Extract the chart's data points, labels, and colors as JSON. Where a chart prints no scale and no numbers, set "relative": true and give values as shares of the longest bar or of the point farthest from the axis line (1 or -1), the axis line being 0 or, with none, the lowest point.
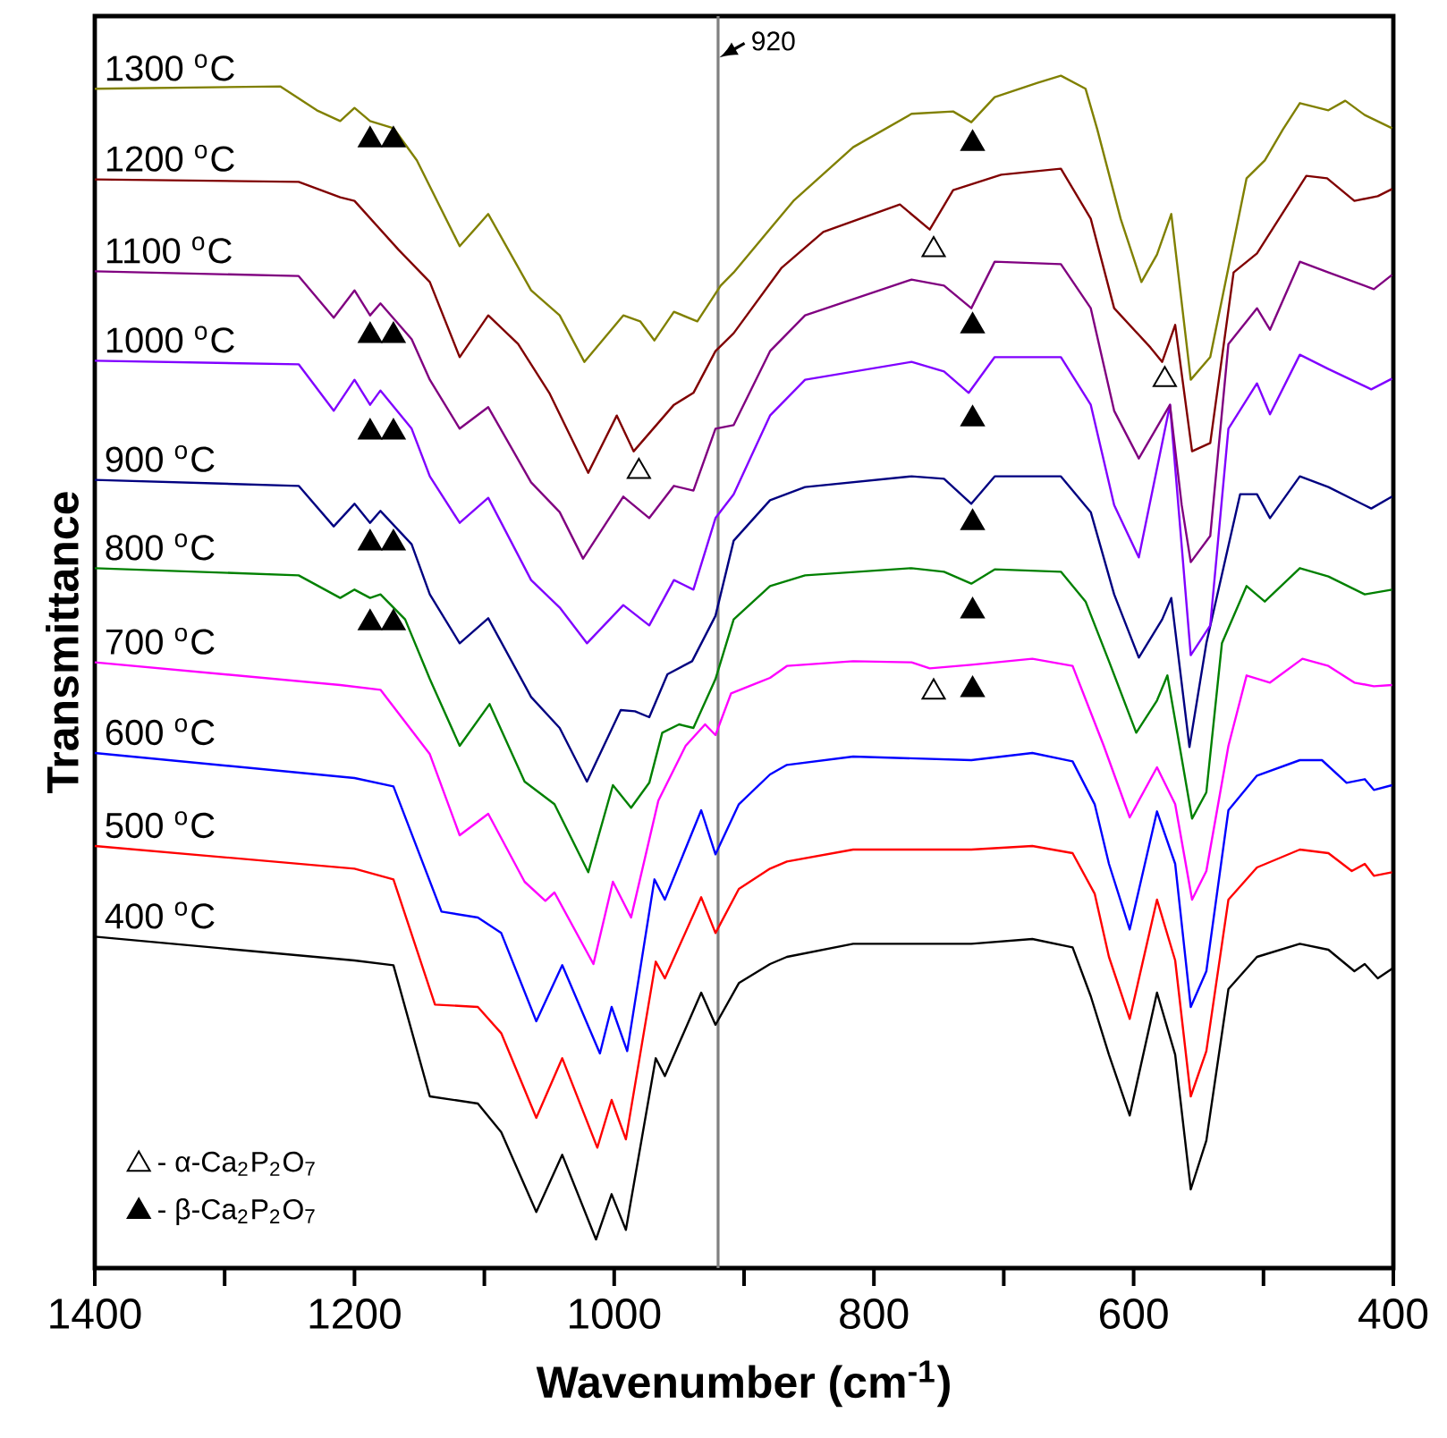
{
  "chart_data": {
    "type": "line",
    "relative": true,
    "xlabel": "Wavenumber (cm$^{-1}$)",
    "ylabel": "Transmittance",
    "xlim": [
      1400,
      400
    ],
    "xticks": [
      1400,
      {
        "value": 1300,
        "label": null
      },
      1200,
      {
        "value": 1100,
        "label": null
      },
      1000,
      {
        "value": 900,
        "label": null
      },
      800,
      {
        "value": 700,
        "label": null
      },
      600,
      {
        "value": 500,
        "label": null
      },
      400
    ],
    "tick_labels": "x",
    "legend": "bottom left",
    "ref_lines": [
      {
        "axis": "x",
        "value": 920,
        "label": "920",
        "color": "#808080"
      }
    ],
    "series": [
      {
        "name": "400 $^{o}$C",
        "color": "#000000",
        "x": [
          1400,
          1200,
          1170,
          1142,
          1105,
          1087,
          1060,
          1040,
          1014,
          1002,
          991,
          968,
          961,
          933,
          922,
          904,
          880,
          867,
          816,
          725,
          678,
          647,
          633,
          619,
          603,
          582,
          568,
          556,
          544,
          527,
          505,
          472,
          450,
          430,
          422,
          412,
          401
        ],
        "values": [
          0.278,
          0.258,
          0.254,
          0.144,
          0.138,
          0.114,
          0.047,
          0.095,
          0.024,
          0.062,
          0.032,
          0.176,
          0.161,
          0.231,
          0.204,
          0.239,
          0.255,
          0.261,
          0.272,
          0.272,
          0.276,
          0.269,
          0.228,
          0.179,
          0.128,
          0.231,
          0.179,
          0.066,
          0.107,
          0.234,
          0.261,
          0.272,
          0.267,
          0.249,
          0.255,
          0.243,
          0.251
        ]
      },
      {
        "name": "500 $^{o}$C",
        "color": "#ff0000",
        "x": [
          1400,
          1200,
          1170,
          1138,
          1105,
          1087,
          1060,
          1040,
          1013,
          1002,
          991,
          968,
          961,
          933,
          922,
          904,
          880,
          867,
          816,
          725,
          678,
          647,
          630,
          619,
          603,
          582,
          568,
          556,
          544,
          527,
          505,
          472,
          450,
          432,
          422,
          415,
          401
        ],
        "values": [
          0.354,
          0.335,
          0.326,
          0.221,
          0.219,
          0.197,
          0.126,
          0.176,
          0.101,
          0.141,
          0.108,
          0.257,
          0.243,
          0.311,
          0.281,
          0.318,
          0.335,
          0.341,
          0.351,
          0.351,
          0.354,
          0.348,
          0.314,
          0.261,
          0.209,
          0.309,
          0.258,
          0.144,
          0.182,
          0.309,
          0.336,
          0.351,
          0.348,
          0.333,
          0.339,
          0.329,
          0.332
        ]
      },
      {
        "name": "600 $^{o}$C",
        "color": "#0000ff",
        "x": [
          1400,
          1200,
          1170,
          1133,
          1105,
          1087,
          1060,
          1040,
          1011,
          1002,
          990,
          969,
          961,
          933,
          922,
          904,
          880,
          867,
          816,
          725,
          678,
          647,
          630,
          619,
          603,
          582,
          568,
          556,
          544,
          527,
          505,
          472,
          455,
          436,
          422,
          415,
          401
        ],
        "values": [
          0.432,
          0.411,
          0.404,
          0.299,
          0.294,
          0.281,
          0.207,
          0.254,
          0.18,
          0.219,
          0.182,
          0.326,
          0.309,
          0.384,
          0.347,
          0.389,
          0.414,
          0.422,
          0.429,
          0.426,
          0.432,
          0.425,
          0.389,
          0.339,
          0.284,
          0.383,
          0.339,
          0.219,
          0.249,
          0.384,
          0.413,
          0.426,
          0.426,
          0.407,
          0.41,
          0.401,
          0.405
        ]
      },
      {
        "name": "700 $^{o}$C",
        "color": "#ff00ff",
        "x": [
          1400,
          1211,
          1180,
          1142,
          1119,
          1097,
          1069,
          1053,
          1046,
          1016,
          1001,
          987,
          966,
          945,
          930,
          922,
          910,
          880,
          867,
          816,
          771,
          757,
          725,
          678,
          647,
          623,
          603,
          582,
          568,
          555,
          544,
          527,
          513,
          495,
          470,
          450,
          430,
          415,
          401
        ],
        "values": [
          0.508,
          0.489,
          0.485,
          0.431,
          0.363,
          0.381,
          0.324,
          0.308,
          0.315,
          0.255,
          0.324,
          0.294,
          0.392,
          0.438,
          0.456,
          0.447,
          0.482,
          0.495,
          0.505,
          0.509,
          0.508,
          0.503,
          0.506,
          0.511,
          0.505,
          0.438,
          0.378,
          0.42,
          0.389,
          0.309,
          0.333,
          0.438,
          0.497,
          0.491,
          0.511,
          0.505,
          0.491,
          0.488,
          0.489
        ]
      },
      {
        "name": "800 $^{o}$C",
        "color": "#008000",
        "x": [
          1400,
          1243,
          1211,
          1200,
          1188,
          1180,
          1161,
          1142,
          1119,
          1096,
          1069,
          1046,
          1020,
          1001,
          987,
          973,
          963,
          950,
          939,
          922,
          908,
          880,
          853,
          771,
          746,
          725,
          707,
          656,
          637,
          619,
          598,
          582,
          574,
          567,
          555,
          544,
          532,
          513,
          499,
          472,
          450,
          422,
          401
        ],
        "values": [
          0.587,
          0.581,
          0.562,
          0.569,
          0.562,
          0.565,
          0.544,
          0.494,
          0.438,
          0.473,
          0.408,
          0.389,
          0.332,
          0.405,
          0.386,
          0.407,
          0.449,
          0.456,
          0.453,
          0.494,
          0.544,
          0.572,
          0.581,
          0.587,
          0.584,
          0.574,
          0.586,
          0.584,
          0.559,
          0.509,
          0.449,
          0.476,
          0.497,
          0.453,
          0.377,
          0.399,
          0.524,
          0.572,
          0.559,
          0.587,
          0.58,
          0.565,
          0.569
        ]
      },
      {
        "name": "900 $^{o}$C",
        "color": "#000080",
        "x": [
          1400,
          1243,
          1216,
          1200,
          1188,
          1180,
          1156,
          1142,
          1119,
          1097,
          1064,
          1042,
          1021,
          995,
          984,
          973,
          959,
          940,
          922,
          908,
          880,
          853,
          771,
          746,
          725,
          707,
          656,
          633,
          615,
          596,
          578,
          571,
          557,
          544,
          518,
          505,
          495,
          472,
          450,
          417,
          401
        ],
        "values": [
          0.661,
          0.656,
          0.622,
          0.641,
          0.625,
          0.635,
          0.607,
          0.565,
          0.524,
          0.545,
          0.479,
          0.453,
          0.408,
          0.468,
          0.467,
          0.462,
          0.498,
          0.509,
          0.547,
          0.61,
          0.644,
          0.655,
          0.664,
          0.662,
          0.641,
          0.664,
          0.664,
          0.634,
          0.565,
          0.512,
          0.544,
          0.562,
          0.437,
          0.524,
          0.649,
          0.649,
          0.629,
          0.664,
          0.655,
          0.637,
          0.647
        ]
      },
      {
        "name": "1000 $^{o}$C",
        "color": "#8000ff",
        "x": [
          1400,
          1243,
          1216,
          1200,
          1188,
          1180,
          1156,
          1142,
          1119,
          1097,
          1064,
          1042,
          1021,
          993,
          973,
          954,
          939,
          922,
          908,
          880,
          853,
          771,
          746,
          727,
          707,
          656,
          633,
          615,
          596,
          572,
          556,
          541,
          527,
          505,
          495,
          472,
          450,
          417,
          401
        ],
        "values": [
          0.761,
          0.758,
          0.719,
          0.745,
          0.724,
          0.736,
          0.704,
          0.664,
          0.625,
          0.646,
          0.577,
          0.554,
          0.524,
          0.556,
          0.539,
          0.577,
          0.569,
          0.629,
          0.649,
          0.715,
          0.745,
          0.76,
          0.752,
          0.734,
          0.764,
          0.764,
          0.724,
          0.64,
          0.596,
          0.724,
          0.514,
          0.539,
          0.704,
          0.742,
          0.716,
          0.766,
          0.754,
          0.737,
          0.746
        ]
      },
      {
        "name": "1100 $^{o}$C",
        "color": "#800080",
        "x": [
          1400,
          1243,
          1216,
          1200,
          1188,
          1180,
          1156,
          1142,
          1119,
          1097,
          1064,
          1042,
          1024,
          993,
          973,
          954,
          939,
          922,
          908,
          880,
          853,
          771,
          746,
          725,
          707,
          656,
          633,
          615,
          596,
          572,
          563,
          556,
          541,
          527,
          505,
          495,
          472,
          450,
          415,
          401
        ],
        "values": [
          0.836,
          0.832,
          0.797,
          0.82,
          0.799,
          0.809,
          0.779,
          0.745,
          0.704,
          0.722,
          0.659,
          0.634,
          0.595,
          0.647,
          0.629,
          0.656,
          0.652,
          0.704,
          0.707,
          0.769,
          0.799,
          0.829,
          0.824,
          0.805,
          0.844,
          0.842,
          0.805,
          0.719,
          0.679,
          0.724,
          0.64,
          0.592,
          0.614,
          0.775,
          0.805,
          0.787,
          0.844,
          0.835,
          0.821,
          0.833
        ]
      },
      {
        "name": "1200 $^{o}$C",
        "color": "#800000",
        "x": [
          1400,
          1243,
          1211,
          1200,
          1166,
          1142,
          1119,
          1097,
          1074,
          1050,
          1020,
          998,
          985,
          954,
          939,
          922,
          908,
          871,
          839,
          780,
          757,
          739,
          702,
          656,
          633,
          615,
          587,
          578,
          568,
          555,
          541,
          523,
          505,
          467,
          451,
          430,
          412,
          401
        ],
        "values": [
          0.913,
          0.911,
          0.898,
          0.895,
          0.854,
          0.827,
          0.764,
          0.799,
          0.775,
          0.734,
          0.667,
          0.715,
          0.685,
          0.724,
          0.734,
          0.769,
          0.784,
          0.839,
          0.869,
          0.892,
          0.871,
          0.904,
          0.917,
          0.922,
          0.88,
          0.805,
          0.772,
          0.76,
          0.791,
          0.685,
          0.692,
          0.835,
          0.851,
          0.916,
          0.914,
          0.895,
          0.899,
          0.905
        ]
      },
      {
        "name": "1300 $^{o}$C",
        "color": "#808000",
        "x": [
          1400,
          1257,
          1229,
          1211,
          1200,
          1188,
          1170,
          1152,
          1119,
          1097,
          1064,
          1042,
          1023,
          993,
          980,
          969,
          954,
          936,
          918,
          908,
          862,
          816,
          771,
          739,
          725,
          707,
          674,
          656,
          637,
          628,
          610,
          594,
          582,
          571,
          556,
          541,
          513,
          499,
          485,
          472,
          450,
          437,
          422,
          401
        ],
        "values": [
          0.989,
          0.991,
          0.971,
          0.962,
          0.973,
          0.962,
          0.956,
          0.929,
          0.857,
          0.884,
          0.82,
          0.799,
          0.76,
          0.799,
          0.794,
          0.778,
          0.802,
          0.794,
          0.824,
          0.835,
          0.895,
          0.94,
          0.968,
          0.97,
          0.961,
          0.982,
          0.994,
          1,
          0.989,
          0.955,
          0.88,
          0.827,
          0.85,
          0.884,
          0.745,
          0.764,
          0.914,
          0.929,
          0.955,
          0.977,
          0.971,
          0.979,
          0.967,
          0.956
        ]
      },
      {
        "name": "- α-Ca$_{2}$P$_{2}$O$_{7}$",
        "type": "scatter",
        "marker": "triangle",
        "color": "#ffffff",
        "x": [
          981,
          754,
          576,
          754
        ],
        "values": [
          0.668,
          0.854,
          0.745,
          0.483
        ]
      },
      {
        "name": "- β-Ca$_{2}$P$_{2}$O$_{7}$",
        "type": "scatter",
        "marker": "triangle",
        "color": "#000000",
        "x": [
          1188,
          1170,
          724,
          1188,
          1170,
          724,
          1188,
          1170,
          724,
          1188,
          1170,
          724,
          1188,
          1170,
          724,
          724
        ],
        "values": [
          0.946,
          0.946,
          0.943,
          0.782,
          0.782,
          0.79,
          0.701,
          0.701,
          0.712,
          0.608,
          0.608,
          0.625,
          0.541,
          0.541,
          0.551,
          0.485
        ]
      }
    ]
  }
}
